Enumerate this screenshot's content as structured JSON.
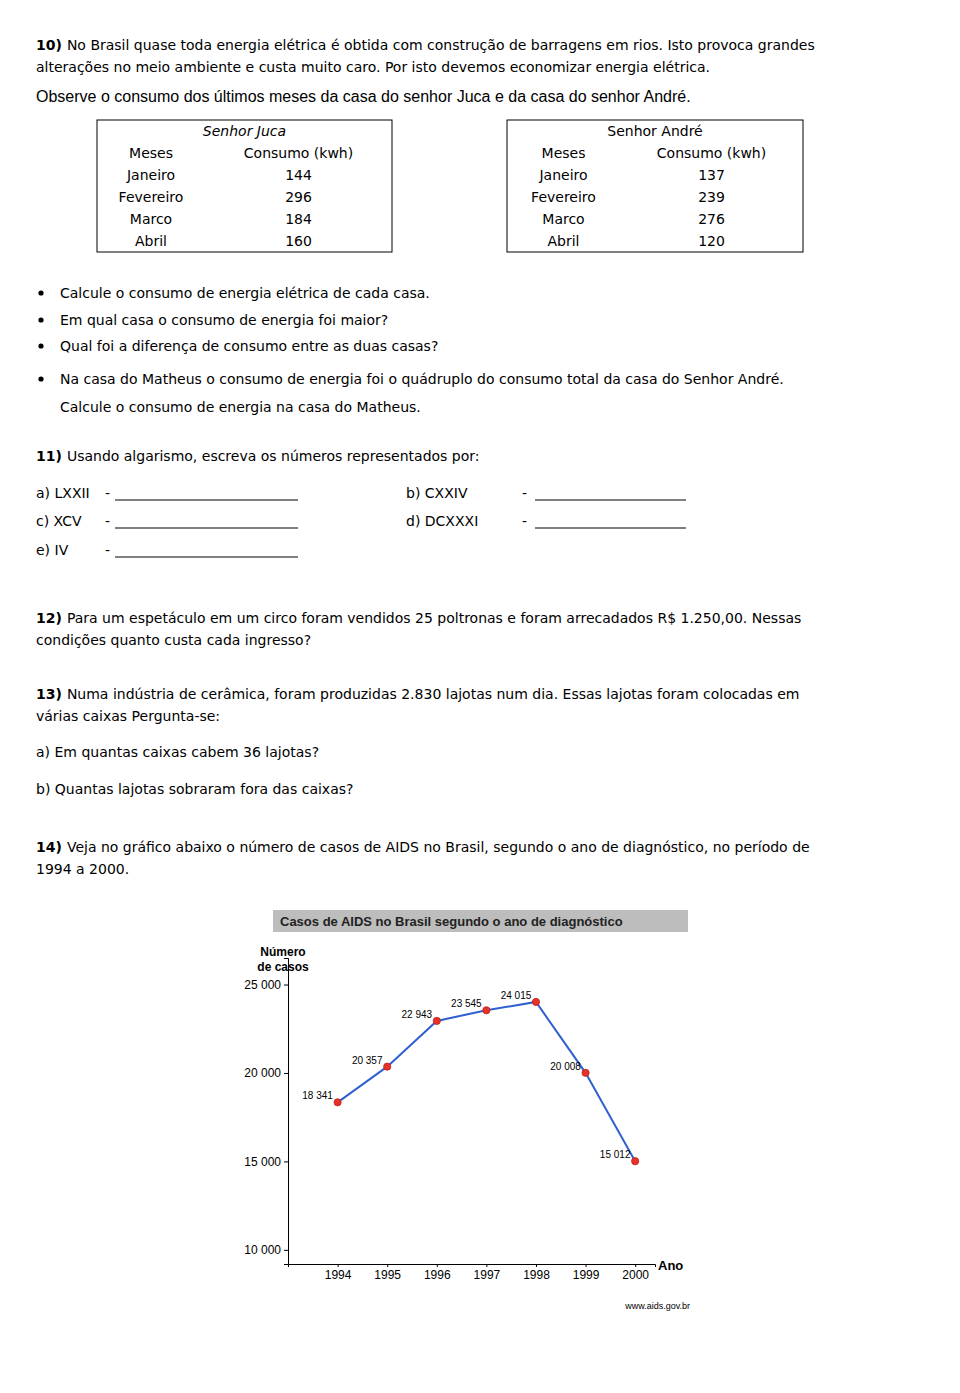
{
  "q10": {
    "number": "10)",
    "lines": [
      "No Brasil quase toda energia elétrica é obtida com construção de barragens em rios. Isto provoca grandes",
      "alterações no meio ambiente e custa muito caro. Por isto devemos economizar energia elétrica."
    ],
    "observe": "Observe o consumo dos últimos meses da casa do senhor Juca e da casa do senhor André.",
    "tables": [
      {
        "title": "Senhor Juca",
        "header": [
          "Meses",
          "Consumo (kwh)"
        ],
        "rows": [
          [
            "Janeiro",
            144
          ],
          [
            "Fevereiro",
            296
          ],
          [
            "Marco",
            184
          ],
          [
            "Abril",
            160
          ]
        ]
      },
      {
        "title": "Senhor André",
        "header": [
          "Meses",
          "Consumo (kwh)"
        ],
        "rows": [
          [
            "Janeiro",
            137
          ],
          [
            "Fevereiro",
            239
          ],
          [
            "Marco",
            276
          ],
          [
            "Abril",
            120
          ]
        ]
      }
    ],
    "bullets": [
      [
        "Calcule o consumo de energia elétrica de cada casa."
      ],
      [
        "Em qual casa o consumo de energia foi maior?"
      ],
      [
        "Qual foi a diferença de consumo entre as duas casas?"
      ],
      [
        "Na casa do Matheus o consumo de energia foi o quádruplo do consumo total da casa do Senhor André.",
        "Calcule o consumo de energia na casa do Matheus."
      ]
    ]
  },
  "q11": {
    "number": "11)",
    "text": "Usando algarismo, escreva os números representados por:",
    "items": [
      "a) LXXII",
      "b) CXXIV",
      "c) XCV",
      "d) DCXXXI",
      "e) IV"
    ],
    "dash": "-"
  },
  "q12": {
    "number": "12)",
    "lines": [
      "Para um espetáculo em um circo foram vendidos 25 poltronas e foram arrecadados R$ 1.250,00. Nessas",
      "condições quanto custa cada ingresso?"
    ]
  },
  "q13": {
    "number": "13)",
    "lines": [
      "Numa indústria de cerâmica, foram produzidas 2.830 lajotas num dia. Essas lajotas foram colocadas em",
      "várias caixas Pergunta-se:"
    ],
    "items": [
      "a) Em quantas caixas cabem 36 lajotas?",
      "b) Quantas lajotas sobraram fora das caixas?"
    ]
  },
  "q14": {
    "number": "14)",
    "lines": [
      "Veja no gráfico abaixo o número de casos de AIDS no Brasil, segundo o ano de diagnóstico, no período de",
      "1994 a 2000."
    ]
  },
  "chart_data": {
    "type": "line",
    "title": "Casos de AIDS no Brasil segundo o ano de diagnóstico",
    "ylabel": [
      "Número",
      "de casos"
    ],
    "xlabel": "Ano",
    "source": "www.aids.gov.br",
    "x": [
      1994,
      1995,
      1996,
      1997,
      1998,
      1999,
      2000
    ],
    "values": [
      18341,
      20357,
      22943,
      23545,
      24015,
      20008,
      15012
    ],
    "value_labels": [
      "18 341",
      "20 357",
      "22 943",
      "23 545",
      "24 015",
      "20 008",
      "15 012"
    ],
    "xlim": [
      1993,
      2000.4
    ],
    "xticks": [
      1994,
      1995,
      1996,
      1997,
      1998,
      1999,
      2000
    ],
    "ylim": [
      9200,
      26500
    ],
    "yticks": [
      {
        "value": 10000,
        "label": "10 000"
      },
      {
        "value": 15000,
        "label": "15 000"
      },
      {
        "value": 20000,
        "label": "20 000"
      },
      {
        "value": 25000,
        "label": "25 000"
      }
    ],
    "color": "#2f5fd0",
    "marker": "circle",
    "data_labels": true,
    "grid": false
  }
}
